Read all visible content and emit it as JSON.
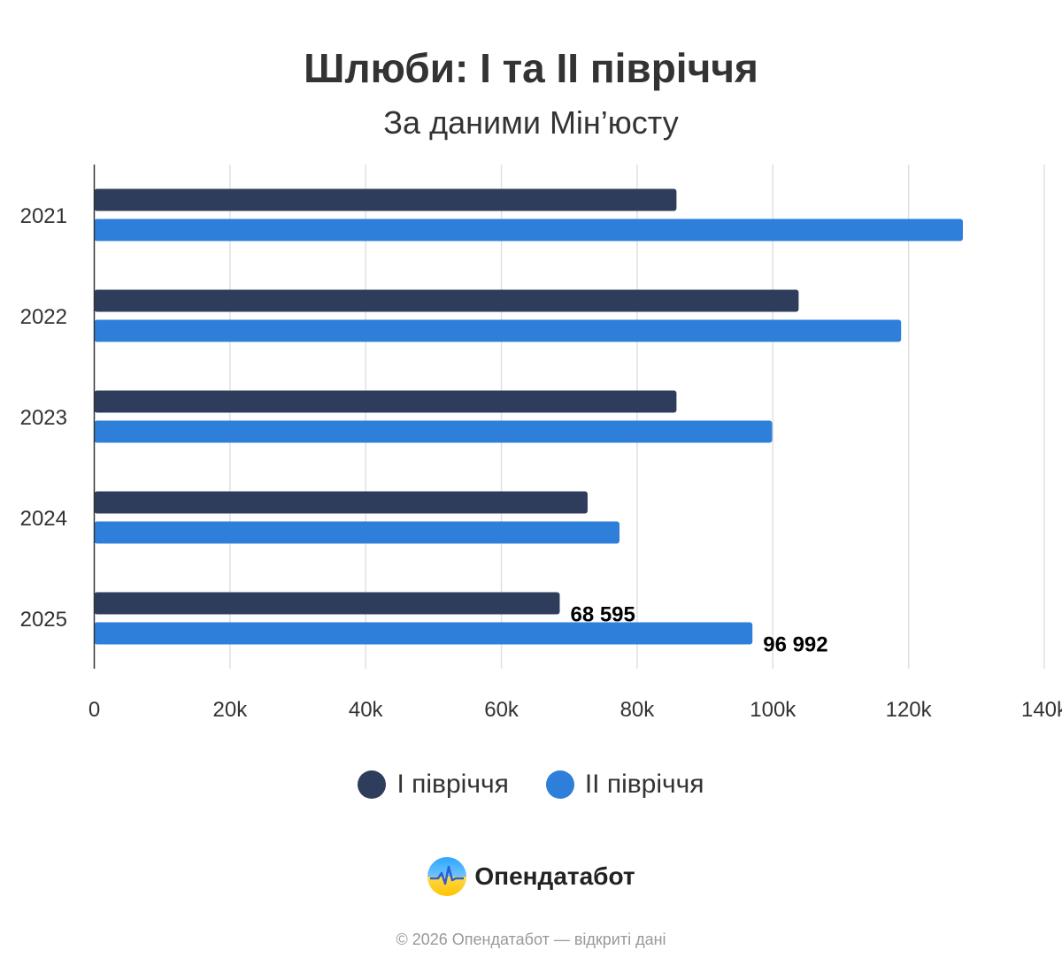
{
  "header": {
    "title": "Шлюби: І та ІІ півріччя",
    "subtitle": "За даними Мін’юсту"
  },
  "chart_data": {
    "type": "bar",
    "orientation": "horizontal",
    "categories": [
      "2021",
      "2022",
      "2023",
      "2024",
      "2025"
    ],
    "series": [
      {
        "name": "І півріччя",
        "color": "#2f3d5c",
        "values": [
          85800,
          103800,
          85800,
          72700,
          68595
        ]
      },
      {
        "name": "ІІ півріччя",
        "color": "#2e7fd9",
        "values": [
          128000,
          118900,
          99900,
          77400,
          96992
        ]
      }
    ],
    "data_labels": [
      {
        "series": 0,
        "category": "2025",
        "text": "68 595"
      },
      {
        "series": 1,
        "category": "2025",
        "text": "96 992"
      }
    ],
    "x_ticks": [
      "0",
      "20k",
      "40k",
      "60k",
      "80k",
      "100k",
      "120k",
      "140k"
    ],
    "xlim": [
      0,
      140000
    ],
    "grid": true,
    "legend_position": "bottom"
  },
  "branding": {
    "logo_text": "Опендатабот",
    "logo_icon": "opendatabot-logo-icon",
    "footer": "© 2026 Опендатабот — відкриті дані"
  }
}
